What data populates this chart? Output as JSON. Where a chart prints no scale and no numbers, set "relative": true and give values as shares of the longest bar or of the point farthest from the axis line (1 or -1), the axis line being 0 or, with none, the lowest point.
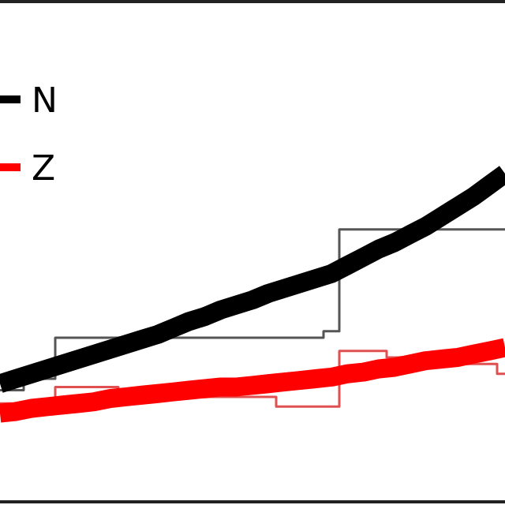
{
  "chart_data": {
    "type": "line",
    "relative": true,
    "legend": "top left",
    "marker": "none",
    "line_style": "solid",
    "categories": [
      null,
      null,
      null,
      null,
      null,
      null,
      null,
      null,
      null,
      null,
      null,
      null,
      null,
      null,
      null,
      null,
      null,
      null,
      null,
      null,
      null,
      null,
      null,
      null,
      null,
      null,
      null,
      null,
      null,
      null,
      null,
      null,
      null
    ],
    "series": [
      {
        "type": "step",
        "color": "#555555",
        "values": [
          0.34,
          0.34,
          0.375,
          0.375,
          0.5,
          0.5,
          0.5,
          0.5,
          0.5,
          0.5,
          0.5,
          0.5,
          0.5,
          0.5,
          0.5,
          0.5,
          0.5,
          0.5,
          0.5,
          0.5,
          0.5,
          0.52,
          0.83,
          0.83,
          0.83,
          0.83,
          0.83,
          0.83,
          0.83,
          0.83,
          0.83,
          0.83,
          0.83
        ]
      },
      {
        "type": "step",
        "color": "#e05050",
        "values": [
          0.3,
          0.3,
          0.3,
          0.3,
          0.35,
          0.35,
          0.35,
          0.35,
          0.34,
          0.34,
          0.34,
          0.34,
          0.34,
          0.32,
          0.32,
          0.32,
          0.32,
          0.32,
          0.29,
          0.29,
          0.29,
          0.29,
          0.46,
          0.46,
          0.46,
          0.44,
          0.44,
          0.44,
          0.44,
          0.42,
          0.42,
          0.42,
          0.39
        ]
      },
      {
        "name": "N",
        "color": "#000000",
        "values": [
          0.36,
          0.375,
          0.39,
          0.405,
          0.42,
          0.435,
          0.45,
          0.465,
          0.48,
          0.495,
          0.51,
          0.53,
          0.55,
          0.565,
          0.585,
          0.6,
          0.615,
          0.635,
          0.65,
          0.665,
          0.68,
          0.695,
          0.72,
          0.745,
          0.77,
          0.79,
          0.815,
          0.84,
          0.87,
          0.9,
          0.93,
          0.965,
          1
        ]
      },
      {
        "name": "Z",
        "color": "#ff0000",
        "values": [
          0.27,
          0.275,
          0.285,
          0.29,
          0.295,
          0.3,
          0.305,
          0.315,
          0.32,
          0.325,
          0.33,
          0.335,
          0.34,
          0.345,
          0.35,
          0.35,
          0.355,
          0.36,
          0.365,
          0.37,
          0.375,
          0.38,
          0.39,
          0.395,
          0.405,
          0.41,
          0.42,
          0.43,
          0.435,
          0.44,
          0.45,
          0.46,
          0.47
        ]
      }
    ]
  }
}
